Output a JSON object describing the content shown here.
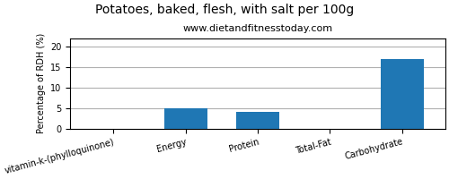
{
  "chart_data": {
    "type": "bar",
    "title": "Potatoes, baked, flesh, with salt per 100g",
    "subtitle": "www.dietandfitnesstoday.com",
    "categories": [
      "vitamin-k-(phylloquinone)",
      "Energy",
      "Protein",
      "Total-Fat",
      "Carbohydrate"
    ],
    "values": [
      0,
      5,
      4,
      0,
      17
    ],
    "ylabel": "Percentage of RDH (%)",
    "ylim": [
      0,
      22
    ],
    "yticks": [
      0,
      5,
      10,
      15,
      20
    ],
    "grid": true
  }
}
